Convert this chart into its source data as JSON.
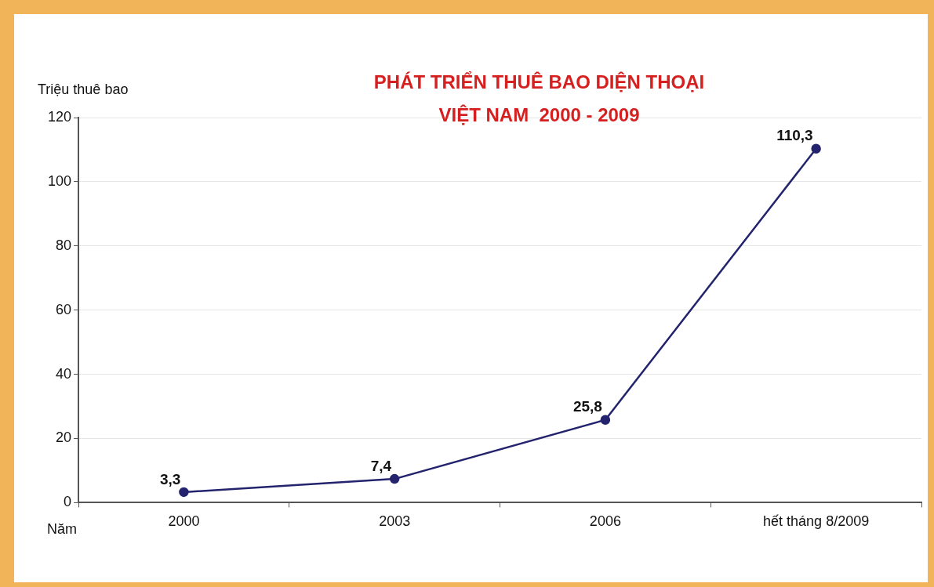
{
  "chart_data": {
    "type": "line",
    "title": "PHÁT TRIỂN THUÊ BAO DIỆN THOẠI",
    "subtitle": "VIỆT NAM  2000 - 2009",
    "xlabel": "Năm",
    "ylabel": "Triệu thuê bao",
    "categories": [
      "2000",
      "2003",
      "2006",
      "hết tháng 8/2009"
    ],
    "series": [
      {
        "color": "#23236e",
        "values": [
          3.3,
          7.4,
          25.8,
          110.3
        ],
        "value_labels": [
          "3,3",
          "7,4",
          "25,8",
          "110,3"
        ]
      }
    ],
    "ylim": [
      0,
      120
    ],
    "yticks": [
      0,
      20,
      40,
      60,
      80,
      100,
      120
    ],
    "grid": "y",
    "legend": false,
    "marker": "circle",
    "line_style": "solid"
  }
}
